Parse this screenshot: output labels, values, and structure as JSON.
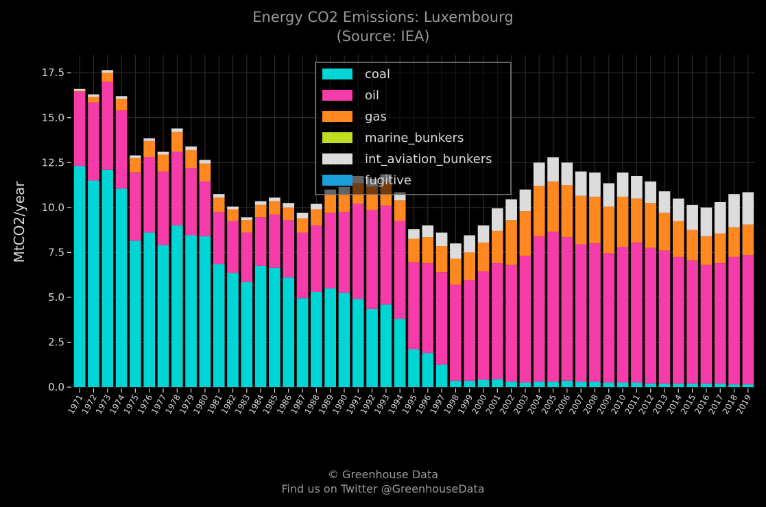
{
  "header": {
    "title_line1": "Energy CO2 Emissions: Luxembourg",
    "title_line2": "(Source: IEA)"
  },
  "footer": {
    "line1": "© Greenhouse Data",
    "line2": "Find us on Twitter @GreenhouseData"
  },
  "chart_data": {
    "type": "bar",
    "stacked": true,
    "ylabel": "MtCO2/year",
    "ylim": [
      0,
      18.5
    ],
    "yticks": [
      "0.0",
      "2.5",
      "5.0",
      "7.5",
      "10.0",
      "12.5",
      "15.0",
      "17.5"
    ],
    "grid": true,
    "legend_position": "top-center",
    "categories": [
      "1971",
      "1972",
      "1973",
      "1974",
      "1975",
      "1976",
      "1977",
      "1978",
      "1979",
      "1980",
      "1981",
      "1982",
      "1983",
      "1984",
      "1985",
      "1986",
      "1987",
      "1988",
      "1989",
      "1990",
      "1991",
      "1992",
      "1993",
      "1994",
      "1995",
      "1996",
      "1997",
      "1998",
      "1999",
      "2000",
      "2001",
      "2002",
      "2003",
      "2004",
      "2005",
      "2006",
      "2007",
      "2008",
      "2009",
      "2010",
      "2011",
      "2012",
      "2013",
      "2014",
      "2015",
      "2016",
      "2017",
      "2018",
      "2019"
    ],
    "series": [
      {
        "name": "coal",
        "color": "#00d5d5",
        "values": [
          12.3,
          11.5,
          12.1,
          11.05,
          8.15,
          8.6,
          7.9,
          9.0,
          8.45,
          8.4,
          6.85,
          6.35,
          5.85,
          6.75,
          6.65,
          6.1,
          4.95,
          5.3,
          5.5,
          5.25,
          4.9,
          4.35,
          4.6,
          3.8,
          2.1,
          1.9,
          1.25,
          0.35,
          0.35,
          0.4,
          0.45,
          0.3,
          0.25,
          0.3,
          0.3,
          0.35,
          0.3,
          0.3,
          0.25,
          0.25,
          0.25,
          0.2,
          0.2,
          0.2,
          0.2,
          0.2,
          0.2,
          0.15,
          0.15
        ]
      },
      {
        "name": "oil",
        "color": "#f53ca8",
        "values": [
          4.15,
          4.35,
          4.9,
          4.35,
          3.8,
          4.2,
          4.1,
          4.1,
          3.75,
          3.05,
          2.9,
          2.9,
          2.75,
          2.7,
          2.95,
          3.2,
          3.65,
          3.7,
          4.2,
          4.5,
          5.3,
          5.5,
          5.5,
          5.45,
          4.85,
          5.0,
          5.15,
          5.35,
          5.6,
          6.05,
          6.45,
          6.5,
          7.05,
          8.1,
          8.35,
          8.0,
          7.65,
          7.7,
          7.2,
          7.55,
          7.8,
          7.55,
          7.4,
          7.05,
          6.85,
          6.6,
          6.7,
          7.1,
          7.2
        ]
      },
      {
        "name": "gas",
        "color": "#ff8820",
        "values": [
          0.05,
          0.3,
          0.5,
          0.65,
          0.8,
          0.9,
          0.95,
          1.1,
          1.0,
          1.0,
          0.8,
          0.65,
          0.7,
          0.7,
          0.75,
          0.7,
          0.8,
          0.9,
          1.0,
          1.0,
          1.15,
          1.3,
          1.3,
          1.15,
          1.3,
          1.45,
          1.45,
          1.45,
          1.55,
          1.6,
          1.8,
          2.5,
          2.5,
          2.8,
          2.8,
          2.9,
          2.7,
          2.6,
          2.6,
          2.8,
          2.45,
          2.5,
          2.1,
          2.0,
          1.7,
          1.6,
          1.65,
          1.65,
          1.7
        ]
      },
      {
        "name": "marine_bunkers",
        "color": "#c0dd22",
        "values": [
          0,
          0,
          0,
          0,
          0,
          0,
          0,
          0,
          0,
          0,
          0,
          0,
          0,
          0,
          0,
          0,
          0,
          0,
          0,
          0,
          0,
          0,
          0,
          0,
          0,
          0,
          0,
          0,
          0,
          0,
          0,
          0,
          0,
          0,
          0,
          0,
          0,
          0,
          0,
          0,
          0,
          0,
          0,
          0,
          0,
          0,
          0,
          0,
          0
        ]
      },
      {
        "name": "int_aviation_bunkers",
        "color": "#dcdcdc",
        "values": [
          0.1,
          0.15,
          0.15,
          0.15,
          0.15,
          0.15,
          0.15,
          0.2,
          0.2,
          0.2,
          0.2,
          0.15,
          0.15,
          0.2,
          0.2,
          0.25,
          0.3,
          0.3,
          0.3,
          0.4,
          0.4,
          0.45,
          0.45,
          0.45,
          0.55,
          0.65,
          0.75,
          0.85,
          0.95,
          0.95,
          1.25,
          1.15,
          1.2,
          1.3,
          1.35,
          1.25,
          1.35,
          1.35,
          1.3,
          1.35,
          1.25,
          1.2,
          1.2,
          1.25,
          1.4,
          1.6,
          1.75,
          1.85,
          1.8
        ]
      },
      {
        "name": "fugitive",
        "color": "#1a9fdb",
        "values": [
          0,
          0,
          0,
          0,
          0,
          0,
          0,
          0,
          0,
          0,
          0,
          0,
          0,
          0,
          0,
          0,
          0,
          0,
          0,
          0,
          0,
          0,
          0,
          0,
          0,
          0,
          0,
          0,
          0,
          0,
          0,
          0,
          0,
          0,
          0,
          0,
          0,
          0,
          0,
          0,
          0,
          0,
          0,
          0,
          0,
          0,
          0,
          0,
          0
        ]
      }
    ]
  },
  "colors": {
    "background": "#000000",
    "grid": "#2b2b2b",
    "text": "#d8d8d8",
    "title": "#9a9a9a",
    "legend_border": "#808080"
  }
}
